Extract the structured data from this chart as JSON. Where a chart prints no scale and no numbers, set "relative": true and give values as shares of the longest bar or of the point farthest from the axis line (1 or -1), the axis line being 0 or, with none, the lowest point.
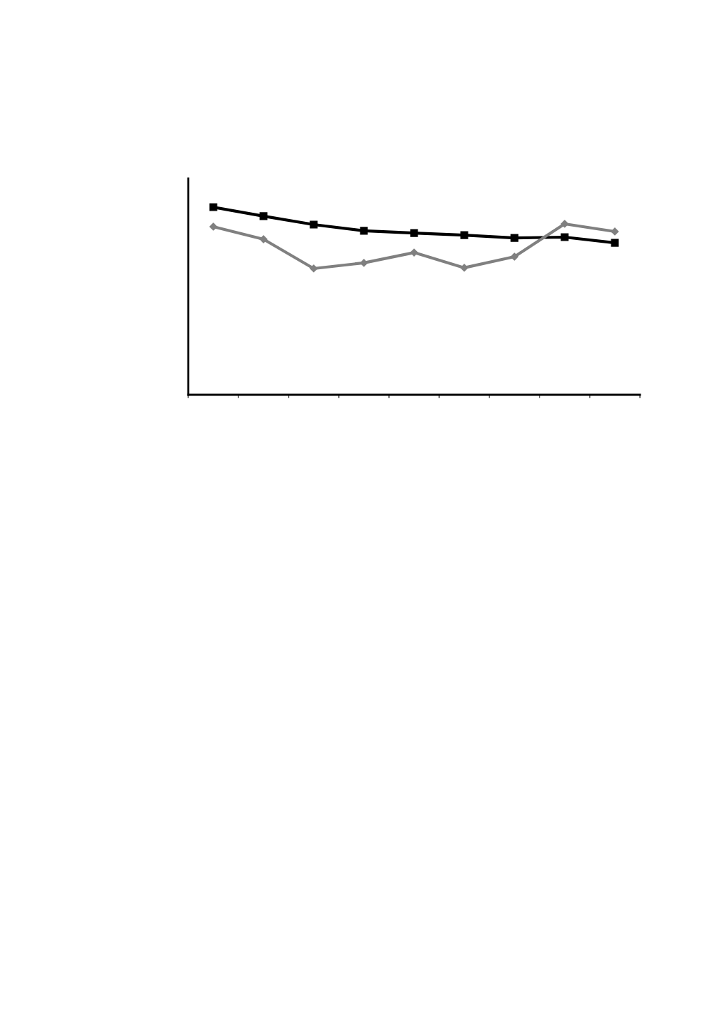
{
  "chart_data": {
    "type": "line",
    "relative": true,
    "categories": [
      null,
      null,
      null,
      null,
      null,
      null,
      null,
      null,
      null
    ],
    "series": [
      {
        "color": "#000000",
        "marker": "square",
        "values": [
          1,
          0.952,
          0.907,
          0.874,
          0.862,
          0.851,
          0.836,
          0.84,
          0.81
        ]
      },
      {
        "color": "#808080",
        "marker": "diamond",
        "values": [
          0.896,
          0.829,
          0.673,
          0.703,
          0.758,
          0.677,
          0.736,
          0.911,
          0.87
        ]
      }
    ],
    "grid": false,
    "legend": false,
    "tick_labels": false
  }
}
